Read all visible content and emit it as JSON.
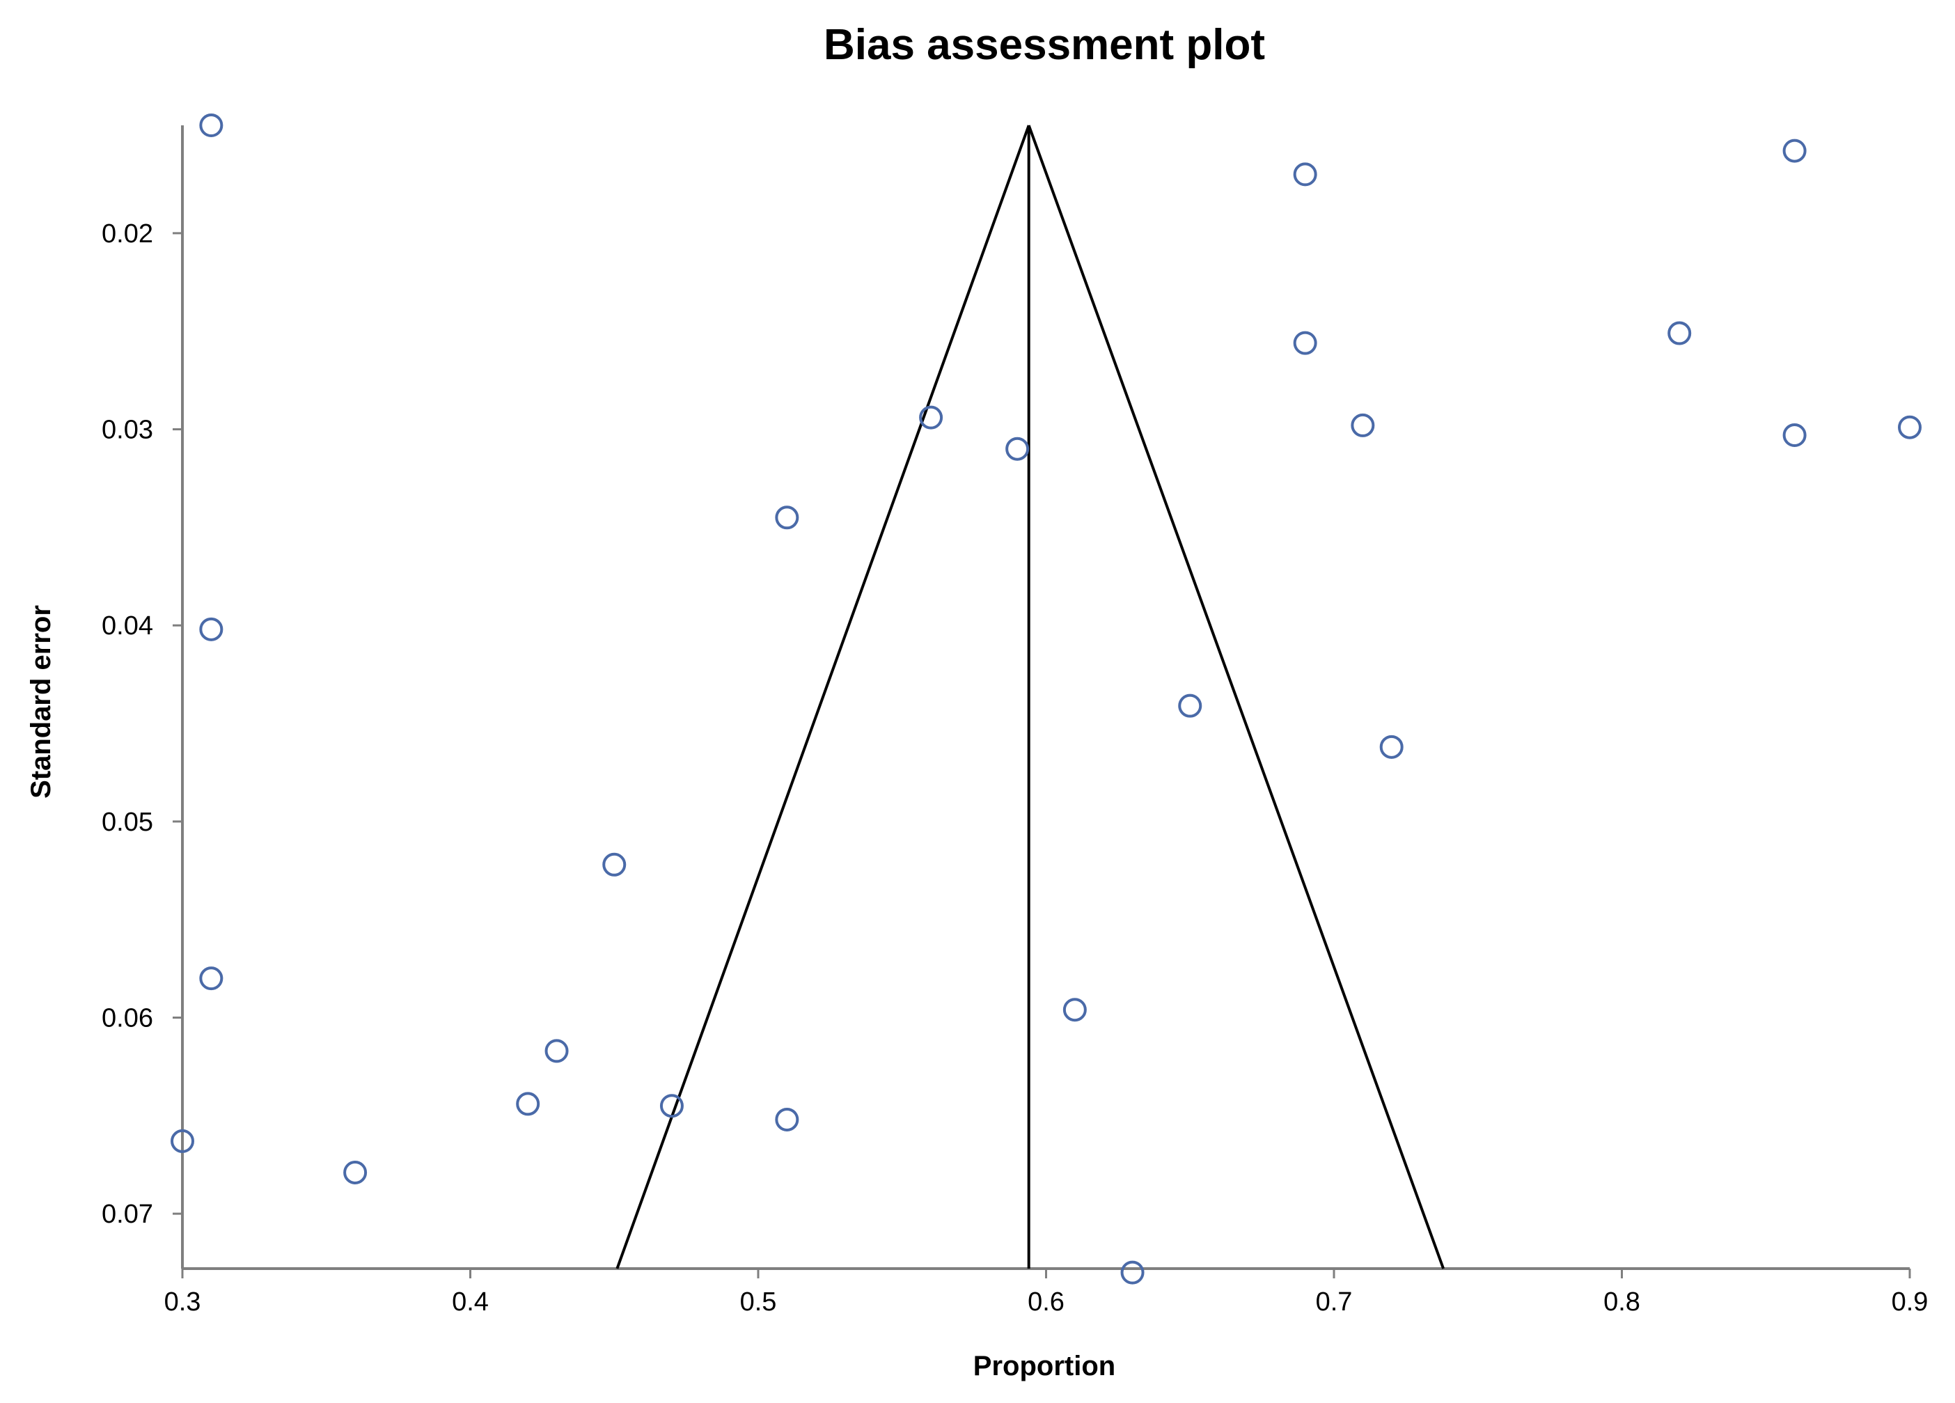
{
  "chart_data": {
    "type": "scatter",
    "title": "Bias assessment plot",
    "xlabel": "Proportion",
    "ylabel": "Standard error",
    "xlim": [
      0.3,
      0.9
    ],
    "ylim": [
      0.0145,
      0.0728
    ],
    "y_reversed": true,
    "x_ticks": [
      "0.3",
      "0.4",
      "0.5",
      "0.6",
      "0.7",
      "0.8",
      "0.9"
    ],
    "y_ticks": [
      "0.02",
      "0.03",
      "0.04",
      "0.05",
      "0.06",
      "0.07"
    ],
    "grid": false,
    "legend": "none",
    "marker": "open-circle",
    "marker_color": "#4a6aa8",
    "funnel": {
      "apex": [
        0.594,
        0.0145
      ],
      "left_base": [
        0.451,
        0.0728
      ],
      "right_base": [
        0.738,
        0.0728
      ],
      "center_line_x": 0.594
    },
    "points": [
      {
        "x": 0.31,
        "y": 0.0145
      },
      {
        "x": 0.86,
        "y": 0.0158
      },
      {
        "x": 0.69,
        "y": 0.017
      },
      {
        "x": 0.69,
        "y": 0.0256
      },
      {
        "x": 0.82,
        "y": 0.0251
      },
      {
        "x": 0.56,
        "y": 0.0294
      },
      {
        "x": 0.71,
        "y": 0.0298
      },
      {
        "x": 0.86,
        "y": 0.0303
      },
      {
        "x": 0.9,
        "y": 0.0299
      },
      {
        "x": 0.59,
        "y": 0.031
      },
      {
        "x": 0.51,
        "y": 0.0345
      },
      {
        "x": 0.31,
        "y": 0.0402
      },
      {
        "x": 0.65,
        "y": 0.0441
      },
      {
        "x": 0.72,
        "y": 0.0462
      },
      {
        "x": 0.45,
        "y": 0.0522
      },
      {
        "x": 0.31,
        "y": 0.058
      },
      {
        "x": 0.61,
        "y": 0.0596
      },
      {
        "x": 0.43,
        "y": 0.0617
      },
      {
        "x": 0.42,
        "y": 0.0644
      },
      {
        "x": 0.47,
        "y": 0.0645
      },
      {
        "x": 0.51,
        "y": 0.0652
      },
      {
        "x": 0.3,
        "y": 0.0663
      },
      {
        "x": 0.36,
        "y": 0.0679
      },
      {
        "x": 0.63,
        "y": 0.073
      }
    ]
  }
}
